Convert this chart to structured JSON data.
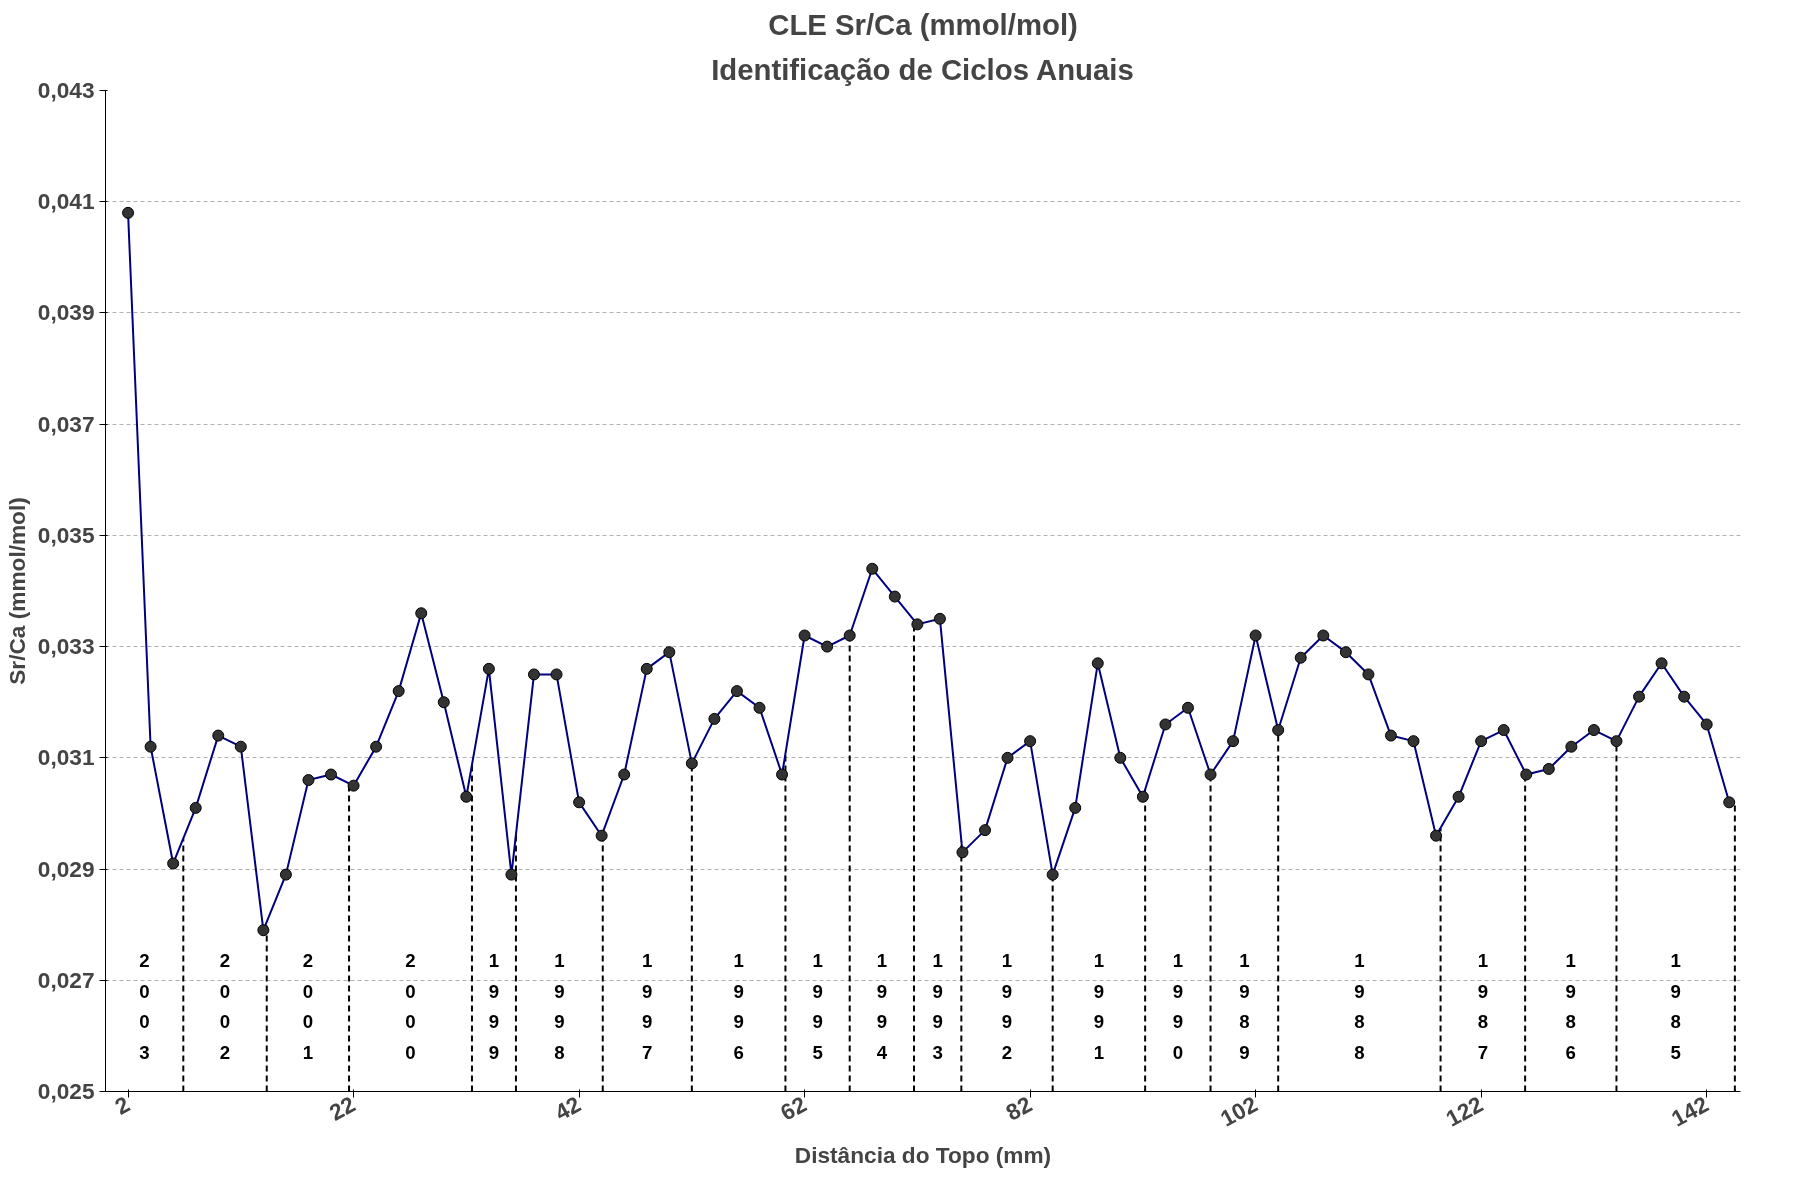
{
  "chart_data": {
    "type": "line",
    "title": "CLE Sr/Ca (mmol/mol)",
    "subtitle": "Identificação de Ciclos Anuais",
    "xlabel": "Distância do Topo (mm)",
    "ylabel": "Sr/Ca (mmol/mol)",
    "x": [
      2,
      4,
      6,
      8,
      10,
      12,
      14,
      16,
      18,
      20,
      22,
      24,
      26,
      28,
      30,
      32,
      34,
      36,
      38,
      40,
      42,
      44,
      46,
      48,
      50,
      52,
      54,
      56,
      58,
      60,
      62,
      64,
      66,
      68,
      70,
      72,
      74,
      76,
      78,
      80,
      82,
      84,
      86,
      88,
      90,
      92,
      94,
      96,
      98,
      100,
      102,
      104,
      106,
      108,
      110,
      112,
      114,
      116,
      118,
      120,
      122,
      124,
      126,
      128,
      130,
      132,
      134,
      136,
      138,
      140,
      142,
      144
    ],
    "series": [
      {
        "color": "#000080",
        "values": [
          0.0408,
          0.0312,
          0.0291,
          0.0301,
          0.0314,
          0.0312,
          0.0279,
          0.0289,
          0.0306,
          0.0307,
          0.0305,
          0.0312,
          0.0322,
          0.0336,
          0.032,
          0.0303,
          0.0326,
          0.0289,
          0.0325,
          0.0325,
          0.0302,
          0.0296,
          0.0307,
          0.0326,
          0.0329,
          0.0309,
          0.0317,
          0.0322,
          0.0319,
          0.0307,
          0.0332,
          0.033,
          0.0332,
          0.0344,
          0.0339,
          0.0334,
          0.0335,
          0.0293,
          0.0297,
          0.031,
          0.0313,
          0.0289,
          0.0301,
          0.0327,
          0.031,
          0.0303,
          0.0316,
          0.0319,
          0.0307,
          0.0313,
          0.0332,
          0.0315,
          0.0328,
          0.0332,
          0.0329,
          0.0325,
          0.0314,
          0.0313,
          0.0296,
          0.0303,
          0.0313,
          0.0315,
          0.0307,
          0.0308,
          0.0312,
          0.0315,
          0.0313,
          0.0321,
          0.0327,
          0.0321,
          0.0316,
          0.0302
        ]
      }
    ],
    "marker": "circle",
    "line_style": "solid",
    "grid": "y",
    "xlim": [
      0,
      145
    ],
    "xticks": [
      2,
      22,
      42,
      62,
      82,
      102,
      122,
      142
    ],
    "ylim": [
      0.025,
      0.043
    ],
    "yticks": [
      {
        "value": 0.025,
        "label": "0,025"
      },
      {
        "value": 0.027,
        "label": "0,027"
      },
      {
        "value": 0.029,
        "label": "0,029"
      },
      {
        "value": 0.031,
        "label": "0,031"
      },
      {
        "value": 0.033,
        "label": "0,033"
      },
      {
        "value": 0.035,
        "label": "0,035"
      },
      {
        "value": 0.037,
        "label": "0,037"
      },
      {
        "value": 0.039,
        "label": "0,039"
      },
      {
        "value": 0.041,
        "label": "0,041"
      },
      {
        "value": 0.043,
        "label": "0,043"
      }
    ],
    "ref_lines": [
      {
        "axis": "x",
        "value": 6.9,
        "color": "#000000",
        "line_style": "dashed"
      },
      {
        "axis": "x",
        "value": 14.3,
        "color": "#000000",
        "line_style": "dashed"
      },
      {
        "axis": "x",
        "value": 21.6,
        "color": "#000000",
        "line_style": "dashed"
      },
      {
        "axis": "x",
        "value": 32.5,
        "color": "#000000",
        "line_style": "dashed"
      },
      {
        "axis": "x",
        "value": 36.4,
        "color": "#000000",
        "line_style": "dashed"
      },
      {
        "axis": "x",
        "value": 44.1,
        "color": "#000000",
        "line_style": "dashed"
      },
      {
        "axis": "x",
        "value": 52.0,
        "color": "#000000",
        "line_style": "dashed"
      },
      {
        "axis": "x",
        "value": 60.3,
        "color": "#000000",
        "line_style": "dashed"
      },
      {
        "axis": "x",
        "value": 66.0,
        "color": "#000000",
        "line_style": "dashed"
      },
      {
        "axis": "x",
        "value": 71.7,
        "color": "#000000",
        "line_style": "dashed"
      },
      {
        "axis": "x",
        "value": 75.9,
        "color": "#000000",
        "line_style": "dashed"
      },
      {
        "axis": "x",
        "value": 84.0,
        "color": "#000000",
        "line_style": "dashed"
      },
      {
        "axis": "x",
        "value": 92.2,
        "color": "#000000",
        "line_style": "dashed"
      },
      {
        "axis": "x",
        "value": 98.0,
        "color": "#000000",
        "line_style": "dashed"
      },
      {
        "axis": "x",
        "value": 104.0,
        "color": "#000000",
        "line_style": "dashed"
      },
      {
        "axis": "x",
        "value": 118.4,
        "color": "#000000",
        "line_style": "dashed"
      },
      {
        "axis": "x",
        "value": 125.9,
        "color": "#000000",
        "line_style": "dashed"
      },
      {
        "axis": "x",
        "value": 134.0,
        "color": "#000000",
        "line_style": "dashed"
      },
      {
        "axis": "x",
        "value": 144.5,
        "color": "#000000",
        "line_style": "dashed"
      }
    ],
    "annotations": [
      "2003",
      "2002",
      "2001",
      "2000",
      "1999",
      "1998",
      "1997",
      "1996",
      "1995",
      "1994",
      "1993",
      "1992",
      "1991",
      "1990",
      "1989",
      "1988",
      "1987",
      "1986",
      "1985"
    ]
  }
}
